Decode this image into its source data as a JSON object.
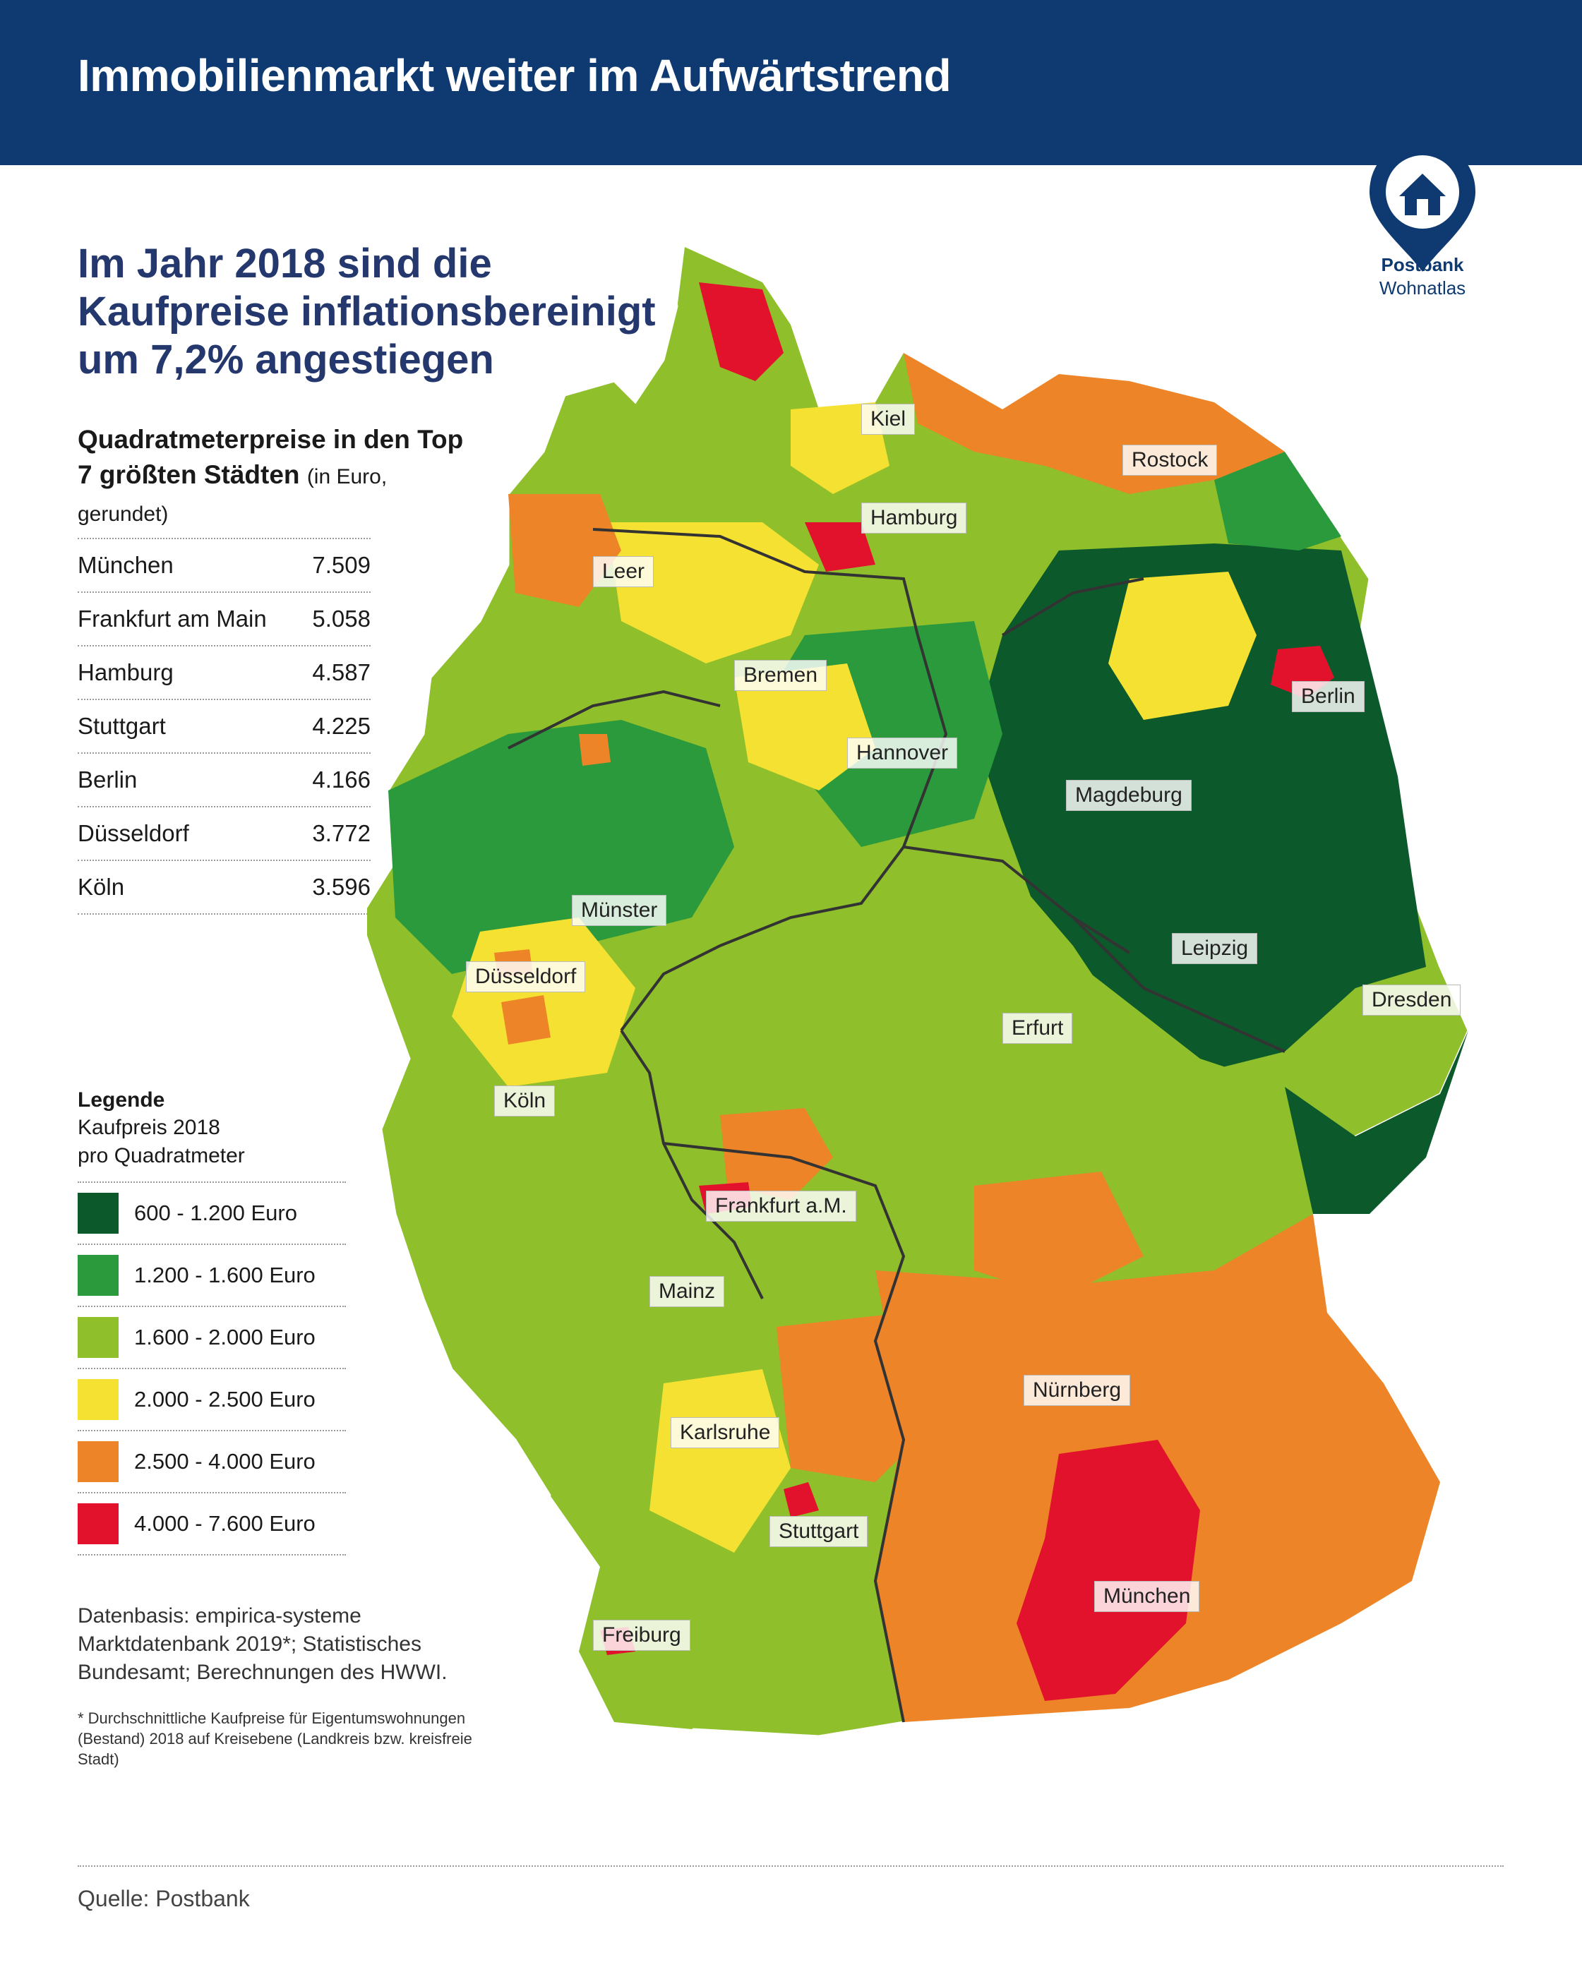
{
  "header": {
    "title": "Immobilienmarkt weiter im Aufwärtstrend"
  },
  "logo": {
    "name": "Postbank",
    "subtitle": "Wohnatlas",
    "icon": "house-pin-icon",
    "color": "#0e3a71"
  },
  "headline": "Im Jahr 2018 sind die Kaufpreise inflationsbereinigt um 7,2% angestiegen",
  "table": {
    "title": "Quadratmeterpreise in den Top 7 größten Städten",
    "note": "(in Euro, gerundet)",
    "rows": [
      {
        "city": "München",
        "value": "7.509"
      },
      {
        "city": "Frankfurt am Main",
        "value": "5.058"
      },
      {
        "city": "Hamburg",
        "value": "4.587"
      },
      {
        "city": "Stuttgart",
        "value": "4.225"
      },
      {
        "city": "Berlin",
        "value": "4.166"
      },
      {
        "city": "Düsseldorf",
        "value": "3.772"
      },
      {
        "city": "Köln",
        "value": "3.596"
      }
    ]
  },
  "legend": {
    "title": "Legende",
    "subtitle_line1": "Kaufpreis 2018",
    "subtitle_line2": "pro Quadratmeter",
    "items": [
      {
        "label": "600 - 1.200 Euro",
        "color": "#0c5a2b"
      },
      {
        "label": "1.200 - 1.600 Euro",
        "color": "#2a9a3c"
      },
      {
        "label": "1.600 - 2.000 Euro",
        "color": "#8fbf2a"
      },
      {
        "label": "2.000 - 2.500 Euro",
        "color": "#f5e132"
      },
      {
        "label": "2.500 - 4.000 Euro",
        "color": "#ee8428"
      },
      {
        "label": "4.000 - 7.600 Euro",
        "color": "#e2122d"
      }
    ]
  },
  "source": "Datenbasis: empirica-systeme Marktdatenbank 2019*; Statistisches Bundesamt; Berechnungen des HWWI.",
  "footnote": "* Durchschnittliche Kaufpreise für Eigentumswohnungen (Bestand) 2018 auf Kreisebene (Landkreis bzw. kreisfreie Stadt)",
  "footer": {
    "quelle": "Quelle: Postbank"
  },
  "map": {
    "labels": {
      "kiel": "Kiel",
      "rostock": "Rostock",
      "hamburg": "Hamburg",
      "leer": "Leer",
      "bremen": "Bremen",
      "berlin": "Berlin",
      "hannover": "Hannover",
      "magdeburg": "Magdeburg",
      "muenster": "Münster",
      "duesseldorf": "Düsseldorf",
      "leipzig": "Leipzig",
      "dresden": "Dresden",
      "erfurt": "Erfurt",
      "koeln": "Köln",
      "frankfurt": "Frankfurt a.M.",
      "mainz": "Mainz",
      "nuernberg": "Nürnberg",
      "karlsruhe": "Karlsruhe",
      "stuttgart": "Stuttgart",
      "muenchen": "München",
      "freiburg": "Freiburg"
    }
  }
}
